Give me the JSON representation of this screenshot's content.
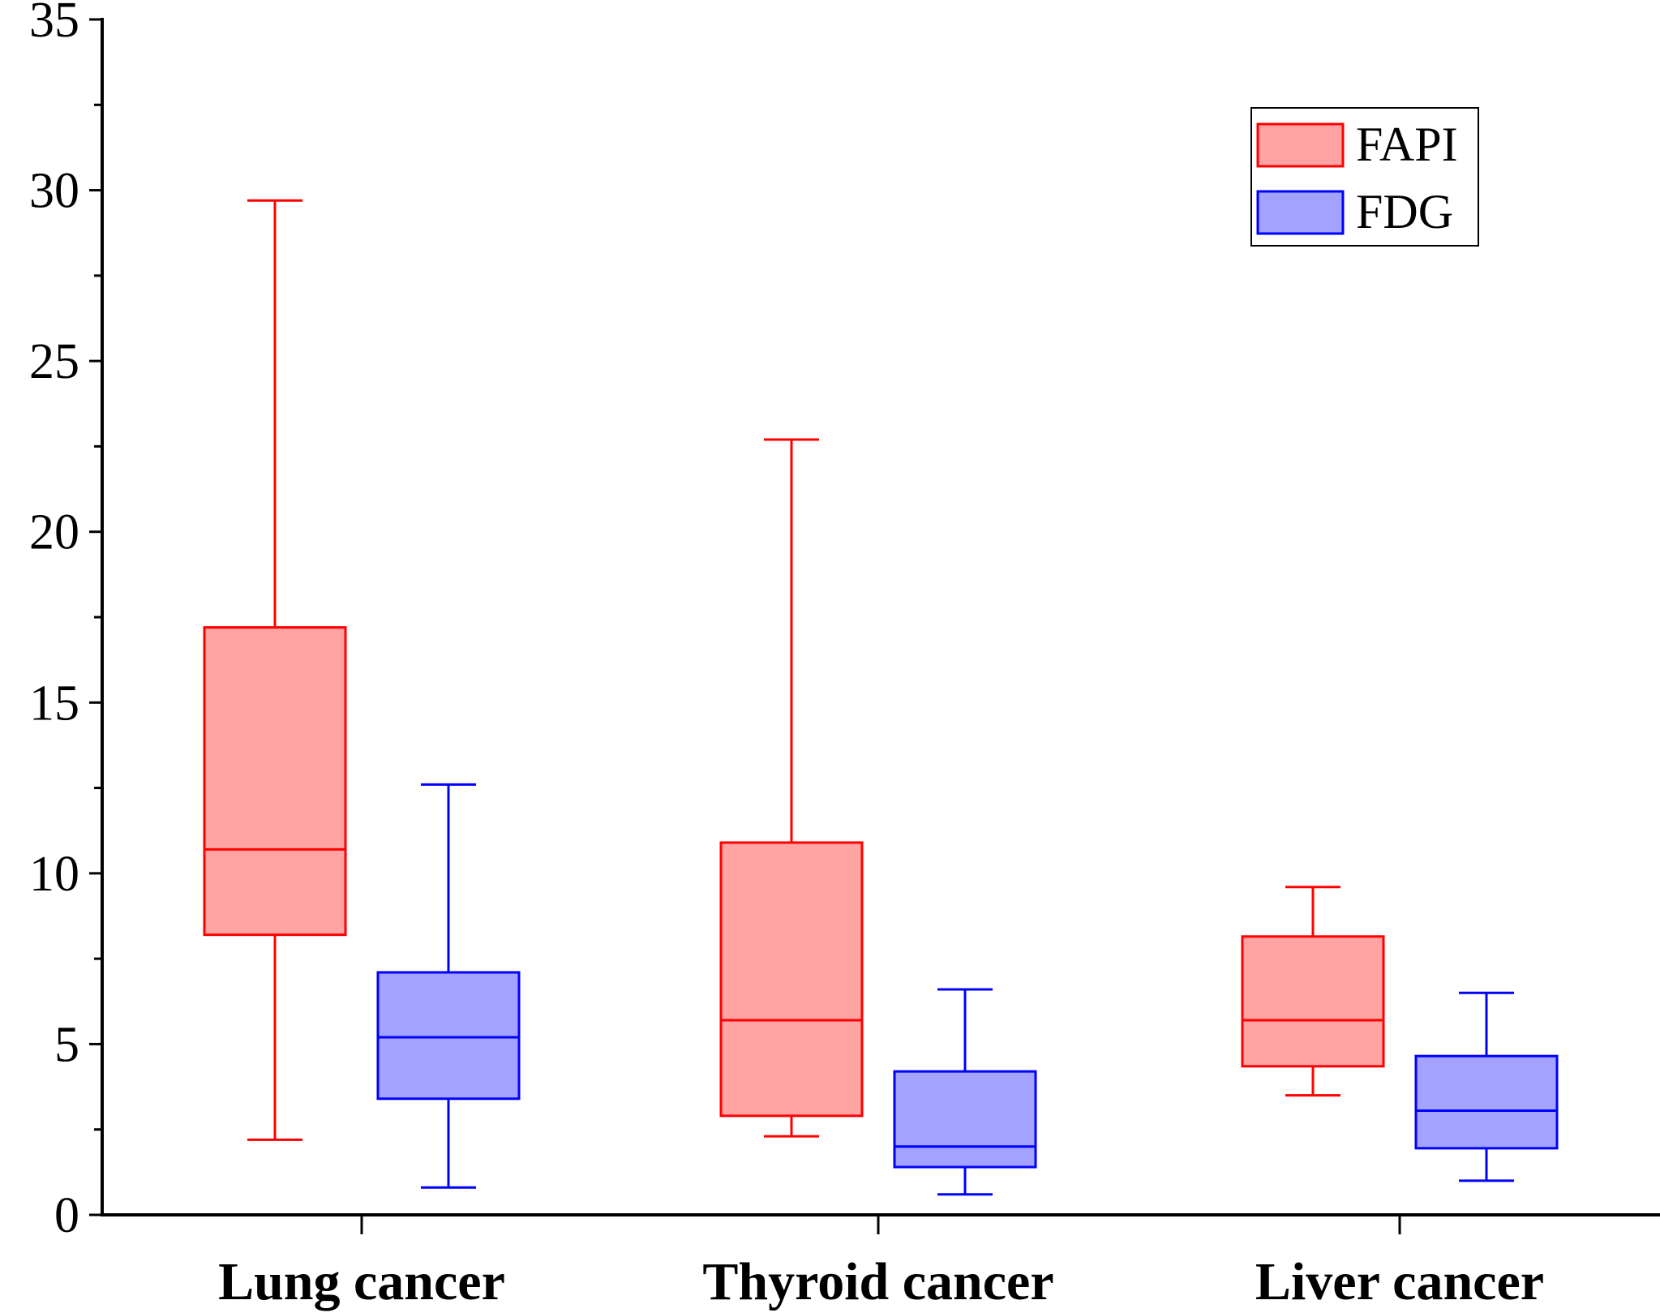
{
  "chart_data": {
    "type": "box",
    "title": "",
    "xlabel": "",
    "ylabel": "",
    "ylim": [
      0,
      35
    ],
    "y_ticks": [
      "0",
      "5",
      "10",
      "15",
      "20",
      "25",
      "30",
      "35"
    ],
    "y_tick_values": [
      0,
      5,
      10,
      15,
      20,
      25,
      30,
      35
    ],
    "grid": false,
    "legend_position": "top-right",
    "categories": [
      "Lung cancer",
      "Thyroid cancer",
      "Liver cancer"
    ],
    "series": [
      {
        "name": "FAPI",
        "fill": "#ffa3a3",
        "stroke": "#ff0000",
        "boxes": [
          {
            "min": 2.2,
            "q1": 8.2,
            "median": 10.7,
            "q3": 17.2,
            "max": 29.7
          },
          {
            "min": 2.3,
            "q1": 2.9,
            "median": 5.7,
            "q3": 10.9,
            "max": 22.7
          },
          {
            "min": 3.5,
            "q1": 4.35,
            "median": 5.7,
            "q3": 8.15,
            "max": 9.6
          }
        ]
      },
      {
        "name": "FDG",
        "fill": "#a3a3ff",
        "stroke": "#0000ff",
        "boxes": [
          {
            "min": 0.8,
            "q1": 3.4,
            "median": 5.2,
            "q3": 7.1,
            "max": 12.6
          },
          {
            "min": 0.6,
            "q1": 1.4,
            "median": 2.0,
            "q3": 4.2,
            "max": 6.6
          },
          {
            "min": 1.0,
            "q1": 1.95,
            "median": 3.05,
            "q3": 4.65,
            "max": 6.5
          }
        ]
      }
    ]
  }
}
